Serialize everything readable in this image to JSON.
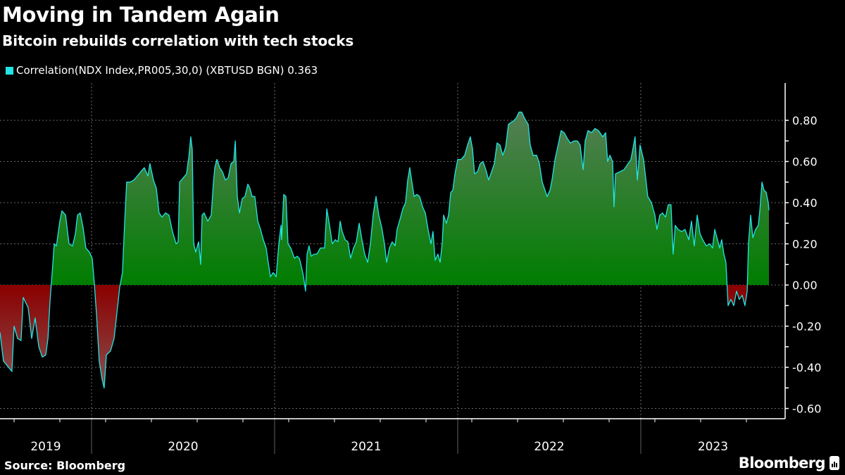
{
  "header": {
    "title": "Moving in Tandem Again",
    "subtitle": "Bitcoin rebuilds correlation with tech stocks"
  },
  "footer": {
    "source": "Source: Bloomberg",
    "logo_text": "Bloomberg"
  },
  "chart_data": {
    "type": "area",
    "title": "Moving in Tandem Again",
    "subtitle": "Bitcoin rebuilds correlation with tech stocks",
    "legend": {
      "placement": "top-left",
      "label": "Correlation(NDX Index,PR005,30,0) (XBTUSD BGN) 0.363"
    },
    "colors": {
      "line": "#22e5e5",
      "positive_fill": "#0a8a0a",
      "negative_fill": "#8b0000",
      "background": "#000000"
    },
    "x_unit": "year",
    "x_tick_labels": [
      "2019",
      "2020",
      "2021",
      "2022",
      "2023"
    ],
    "xlim": [
      2019.5,
      2023.72
    ],
    "y_tick_labels": [
      "0.80",
      "0.60",
      "0.40",
      "0.20",
      "0.00",
      "-0.20",
      "-0.40",
      "-0.60"
    ],
    "y_ticks": [
      0.8,
      0.6,
      0.4,
      0.2,
      0.0,
      -0.2,
      -0.4,
      -0.6
    ],
    "ylim": [
      -0.65,
      0.98
    ],
    "y_axis_side": "right",
    "grid": true,
    "last_value": 0.363,
    "series": [
      {
        "name": "Correlation(NDX Index,PR005,30,0) (XBTUSD BGN)",
        "points": [
          [
            2019.5,
            -0.23
          ],
          [
            2019.519,
            -0.37
          ],
          [
            2019.538,
            -0.39
          ],
          [
            2019.565,
            -0.42
          ],
          [
            2019.577,
            -0.2
          ],
          [
            2019.596,
            -0.26
          ],
          [
            2019.615,
            -0.27
          ],
          [
            2019.627,
            -0.06
          ],
          [
            2019.654,
            -0.11
          ],
          [
            2019.673,
            -0.26
          ],
          [
            2019.692,
            -0.16
          ],
          [
            2019.712,
            -0.3
          ],
          [
            2019.731,
            -0.35
          ],
          [
            2019.75,
            -0.34
          ],
          [
            2019.762,
            -0.26
          ],
          [
            2019.773,
            -0.08
          ],
          [
            2019.785,
            0.06
          ],
          [
            2019.796,
            0.2
          ],
          [
            2019.808,
            0.19
          ],
          [
            2019.827,
            0.31
          ],
          [
            2019.838,
            0.36
          ],
          [
            2019.858,
            0.34
          ],
          [
            2019.877,
            0.2
          ],
          [
            2019.896,
            0.19
          ],
          [
            2019.912,
            0.25
          ],
          [
            2019.923,
            0.34
          ],
          [
            2019.938,
            0.35
          ],
          [
            2019.954,
            0.28
          ],
          [
            2019.969,
            0.18
          ],
          [
            2019.988,
            0.16
          ],
          [
            2020.004,
            0.13
          ],
          [
            2020.015,
            0.01
          ],
          [
            2020.027,
            -0.14
          ],
          [
            2020.042,
            -0.37
          ],
          [
            2020.058,
            -0.46
          ],
          [
            2020.069,
            -0.5
          ],
          [
            2020.081,
            -0.34
          ],
          [
            2020.104,
            -0.32
          ],
          [
            2020.123,
            -0.26
          ],
          [
            2020.138,
            -0.14
          ],
          [
            2020.154,
            -0.01
          ],
          [
            2020.169,
            0.06
          ],
          [
            2020.181,
            0.31
          ],
          [
            2020.192,
            0.5
          ],
          [
            2020.212,
            0.5
          ],
          [
            2020.231,
            0.51
          ],
          [
            2020.25,
            0.53
          ],
          [
            2020.269,
            0.55
          ],
          [
            2020.288,
            0.57
          ],
          [
            2020.308,
            0.53
          ],
          [
            2020.319,
            0.59
          ],
          [
            2020.338,
            0.51
          ],
          [
            2020.354,
            0.47
          ],
          [
            2020.369,
            0.35
          ],
          [
            2020.385,
            0.33
          ],
          [
            2020.404,
            0.35
          ],
          [
            2020.423,
            0.34
          ],
          [
            2020.442,
            0.26
          ],
          [
            2020.462,
            0.2
          ],
          [
            2020.473,
            0.21
          ],
          [
            2020.481,
            0.5
          ],
          [
            2020.5,
            0.52
          ],
          [
            2020.519,
            0.54
          ],
          [
            2020.531,
            0.62
          ],
          [
            2020.542,
            0.72
          ],
          [
            2020.55,
            0.66
          ],
          [
            2020.558,
            0.2
          ],
          [
            2020.569,
            0.16
          ],
          [
            2020.585,
            0.21
          ],
          [
            2020.596,
            0.1
          ],
          [
            2020.604,
            0.34
          ],
          [
            2020.615,
            0.35
          ],
          [
            2020.635,
            0.31
          ],
          [
            2020.654,
            0.34
          ],
          [
            2020.665,
            0.49
          ],
          [
            2020.673,
            0.57
          ],
          [
            2020.685,
            0.61
          ],
          [
            2020.7,
            0.57
          ],
          [
            2020.715,
            0.55
          ],
          [
            2020.731,
            0.51
          ],
          [
            2020.746,
            0.52
          ],
          [
            2020.762,
            0.59
          ],
          [
            2020.777,
            0.6
          ],
          [
            2020.785,
            0.7
          ],
          [
            2020.796,
            0.43
          ],
          [
            2020.808,
            0.35
          ],
          [
            2020.823,
            0.42
          ],
          [
            2020.838,
            0.43
          ],
          [
            2020.854,
            0.49
          ],
          [
            2020.865,
            0.47
          ],
          [
            2020.877,
            0.43
          ],
          [
            2020.892,
            0.43
          ],
          [
            2020.908,
            0.31
          ],
          [
            2020.923,
            0.27
          ],
          [
            2020.938,
            0.22
          ],
          [
            2020.954,
            0.18
          ],
          [
            2020.965,
            0.11
          ],
          [
            2020.977,
            0.04
          ],
          [
            2020.992,
            0.06
          ],
          [
            2021.008,
            0.04
          ],
          [
            2021.023,
            0.2
          ],
          [
            2021.035,
            0.29
          ],
          [
            2021.038,
            0.22
          ],
          [
            2021.05,
            0.44
          ],
          [
            2021.062,
            0.43
          ],
          [
            2021.073,
            0.2
          ],
          [
            2021.088,
            0.18
          ],
          [
            2021.108,
            0.13
          ],
          [
            2021.123,
            0.14
          ],
          [
            2021.135,
            0.13
          ],
          [
            2021.146,
            0.09
          ],
          [
            2021.158,
            0.04
          ],
          [
            2021.169,
            -0.03
          ],
          [
            2021.177,
            0.15
          ],
          [
            2021.188,
            0.19
          ],
          [
            2021.2,
            0.14
          ],
          [
            2021.215,
            0.15
          ],
          [
            2021.231,
            0.15
          ],
          [
            2021.25,
            0.18
          ],
          [
            2021.273,
            0.18
          ],
          [
            2021.285,
            0.37
          ],
          [
            2021.3,
            0.29
          ],
          [
            2021.315,
            0.2
          ],
          [
            2021.331,
            0.22
          ],
          [
            2021.346,
            0.21
          ],
          [
            2021.358,
            0.31
          ],
          [
            2021.369,
            0.26
          ],
          [
            2021.385,
            0.22
          ],
          [
            2021.4,
            0.21
          ],
          [
            2021.415,
            0.13
          ],
          [
            2021.431,
            0.18
          ],
          [
            2021.446,
            0.21
          ],
          [
            2021.462,
            0.3
          ],
          [
            2021.477,
            0.22
          ],
          [
            2021.492,
            0.15
          ],
          [
            2021.508,
            0.11
          ],
          [
            2021.523,
            0.2
          ],
          [
            2021.538,
            0.34
          ],
          [
            2021.554,
            0.43
          ],
          [
            2021.569,
            0.34
          ],
          [
            2021.585,
            0.28
          ],
          [
            2021.6,
            0.2
          ],
          [
            2021.612,
            0.11
          ],
          [
            2021.627,
            0.18
          ],
          [
            2021.642,
            0.21
          ],
          [
            2021.658,
            0.19
          ],
          [
            2021.669,
            0.27
          ],
          [
            2021.685,
            0.32
          ],
          [
            2021.7,
            0.37
          ],
          [
            2021.715,
            0.4
          ],
          [
            2021.727,
            0.51
          ],
          [
            2021.738,
            0.57
          ],
          [
            2021.75,
            0.5
          ],
          [
            2021.762,
            0.43
          ],
          [
            2021.777,
            0.44
          ],
          [
            2021.792,
            0.43
          ],
          [
            2021.808,
            0.38
          ],
          [
            2021.823,
            0.35
          ],
          [
            2021.838,
            0.27
          ],
          [
            2021.854,
            0.2
          ],
          [
            2021.865,
            0.26
          ],
          [
            2021.877,
            0.12
          ],
          [
            2021.892,
            0.15
          ],
          [
            2021.904,
            0.11
          ],
          [
            2021.915,
            0.2
          ],
          [
            2021.923,
            0.34
          ],
          [
            2021.938,
            0.3
          ],
          [
            2021.95,
            0.34
          ],
          [
            2021.962,
            0.45
          ],
          [
            2021.973,
            0.46
          ],
          [
            2021.985,
            0.54
          ],
          [
            2022.0,
            0.61
          ],
          [
            2022.019,
            0.61
          ],
          [
            2022.038,
            0.63
          ],
          [
            2022.054,
            0.68
          ],
          [
            2022.069,
            0.72
          ],
          [
            2022.081,
            0.66
          ],
          [
            2022.092,
            0.54
          ],
          [
            2022.108,
            0.55
          ],
          [
            2022.123,
            0.59
          ],
          [
            2022.138,
            0.6
          ],
          [
            2022.154,
            0.56
          ],
          [
            2022.169,
            0.51
          ],
          [
            2022.185,
            0.55
          ],
          [
            2022.2,
            0.59
          ],
          [
            2022.215,
            0.69
          ],
          [
            2022.231,
            0.68
          ],
          [
            2022.246,
            0.63
          ],
          [
            2022.262,
            0.67
          ],
          [
            2022.277,
            0.78
          ],
          [
            2022.292,
            0.79
          ],
          [
            2022.308,
            0.8
          ],
          [
            2022.319,
            0.81
          ],
          [
            2022.335,
            0.84
          ],
          [
            2022.35,
            0.84
          ],
          [
            2022.365,
            0.81
          ],
          [
            2022.385,
            0.78
          ],
          [
            2022.396,
            0.68
          ],
          [
            2022.412,
            0.63
          ],
          [
            2022.431,
            0.63
          ],
          [
            2022.446,
            0.59
          ],
          [
            2022.462,
            0.5
          ],
          [
            2022.477,
            0.46
          ],
          [
            2022.488,
            0.43
          ],
          [
            2022.504,
            0.46
          ],
          [
            2022.515,
            0.51
          ],
          [
            2022.531,
            0.61
          ],
          [
            2022.546,
            0.67
          ],
          [
            2022.565,
            0.75
          ],
          [
            2022.581,
            0.74
          ],
          [
            2022.6,
            0.71
          ],
          [
            2022.615,
            0.69
          ],
          [
            2022.635,
            0.7
          ],
          [
            2022.654,
            0.7
          ],
          [
            2022.669,
            0.68
          ],
          [
            2022.685,
            0.56
          ],
          [
            2022.696,
            0.7
          ],
          [
            2022.712,
            0.75
          ],
          [
            2022.731,
            0.74
          ],
          [
            2022.75,
            0.76
          ],
          [
            2022.769,
            0.75
          ],
          [
            2022.792,
            0.72
          ],
          [
            2022.808,
            0.74
          ],
          [
            2022.819,
            0.6
          ],
          [
            2022.831,
            0.63
          ],
          [
            2022.846,
            0.6
          ],
          [
            2022.854,
            0.38
          ],
          [
            2022.862,
            0.54
          ],
          [
            2022.885,
            0.55
          ],
          [
            2022.908,
            0.56
          ],
          [
            2022.931,
            0.59
          ],
          [
            2022.946,
            0.61
          ],
          [
            2022.969,
            0.72
          ],
          [
            2022.981,
            0.51
          ],
          [
            2022.996,
            0.68
          ],
          [
            2023.015,
            0.61
          ],
          [
            2023.027,
            0.52
          ],
          [
            2023.038,
            0.43
          ],
          [
            2023.058,
            0.4
          ],
          [
            2023.077,
            0.34
          ],
          [
            2023.088,
            0.27
          ],
          [
            2023.104,
            0.34
          ],
          [
            2023.119,
            0.35
          ],
          [
            2023.135,
            0.33
          ],
          [
            2023.15,
            0.39
          ],
          [
            2023.165,
            0.39
          ],
          [
            2023.177,
            0.15
          ],
          [
            2023.188,
            0.29
          ],
          [
            2023.204,
            0.27
          ],
          [
            2023.223,
            0.26
          ],
          [
            2023.242,
            0.27
          ],
          [
            2023.262,
            0.22
          ],
          [
            2023.277,
            0.31
          ],
          [
            2023.292,
            0.19
          ],
          [
            2023.308,
            0.34
          ],
          [
            2023.323,
            0.25
          ],
          [
            2023.338,
            0.22
          ],
          [
            2023.358,
            0.19
          ],
          [
            2023.377,
            0.2
          ],
          [
            2023.392,
            0.18
          ],
          [
            2023.404,
            0.27
          ],
          [
            2023.419,
            0.22
          ],
          [
            2023.431,
            0.18
          ],
          [
            2023.442,
            0.22
          ],
          [
            2023.454,
            0.15
          ],
          [
            2023.465,
            0.11
          ],
          [
            2023.477,
            -0.1
          ],
          [
            2023.492,
            -0.07
          ],
          [
            2023.508,
            -0.1
          ],
          [
            2023.523,
            -0.03
          ],
          [
            2023.538,
            -0.07
          ],
          [
            2023.554,
            -0.05
          ],
          [
            2023.569,
            -0.1
          ],
          [
            2023.581,
            -0.03
          ],
          [
            2023.588,
            0.2
          ],
          [
            2023.6,
            0.34
          ],
          [
            2023.612,
            0.23
          ],
          [
            2023.627,
            0.27
          ],
          [
            2023.642,
            0.29
          ],
          [
            2023.65,
            0.36
          ],
          [
            2023.662,
            0.5
          ],
          [
            2023.673,
            0.46
          ],
          [
            2023.685,
            0.45
          ],
          [
            2023.696,
            0.4
          ],
          [
            2023.7,
            0.363
          ]
        ]
      }
    ]
  }
}
